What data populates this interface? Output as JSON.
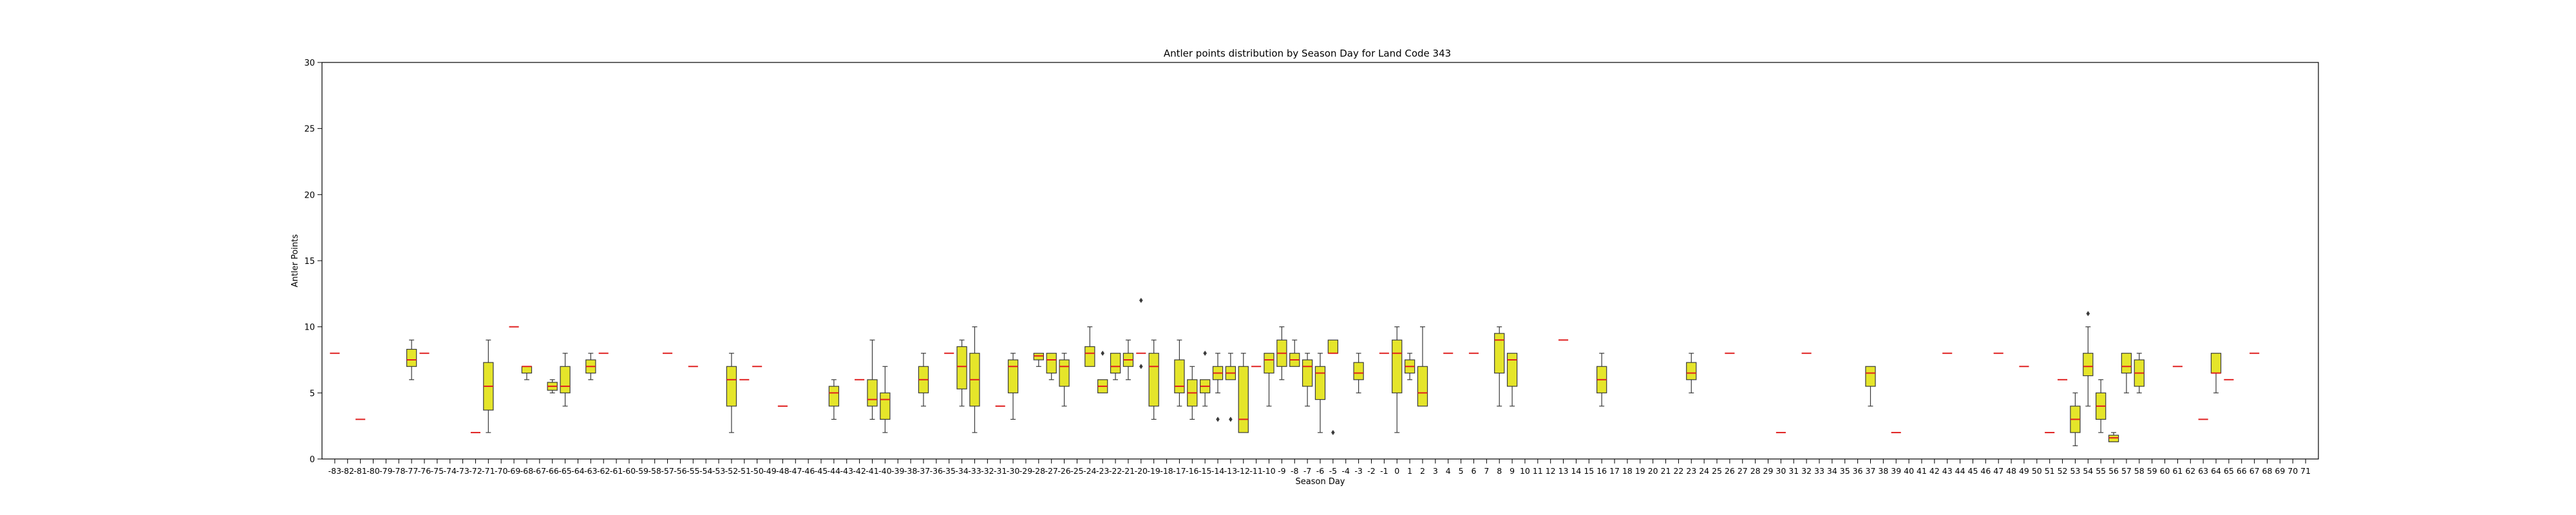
{
  "chart_data": {
    "type": "box",
    "title": "Antler points distribution by Season Day for Land Code 343",
    "xlabel": "Season Day",
    "ylabel": "Antler Points",
    "ylim": [
      0,
      30
    ],
    "yticks": [
      0,
      5,
      10,
      15,
      20,
      25,
      30
    ],
    "x_start": -83,
    "x_end": 71,
    "grid": false,
    "colors": {
      "box_fill": "#e5e52a",
      "median": "#e02020",
      "edge": "#3a3a3a",
      "flier": "#3a3a3a"
    },
    "boxes": [
      {
        "x": -83,
        "min": 8,
        "q1": 8,
        "median": 8,
        "q3": 8,
        "max": 8
      },
      {
        "x": -81,
        "min": 3,
        "q1": 3,
        "median": 3,
        "q3": 3,
        "max": 3
      },
      {
        "x": -77,
        "min": 6,
        "q1": 7,
        "median": 7.5,
        "q3": 8.3,
        "max": 9
      },
      {
        "x": -76,
        "min": 8,
        "q1": 8,
        "median": 8,
        "q3": 8,
        "max": 8
      },
      {
        "x": -72,
        "min": 2,
        "q1": 2,
        "median": 2,
        "q3": 2,
        "max": 2
      },
      {
        "x": -71,
        "min": 2,
        "q1": 3.7,
        "median": 5.5,
        "q3": 7.3,
        "max": 9
      },
      {
        "x": -69,
        "min": 10,
        "q1": 10,
        "median": 10,
        "q3": 10,
        "max": 10
      },
      {
        "x": -68,
        "min": 6,
        "q1": 6.5,
        "median": 7,
        "q3": 7,
        "max": 7
      },
      {
        "x": -66,
        "min": 5,
        "q1": 5.2,
        "median": 5.5,
        "q3": 5.8,
        "max": 6
      },
      {
        "x": -65,
        "min": 4,
        "q1": 5,
        "median": 5.5,
        "q3": 7,
        "max": 8
      },
      {
        "x": -63,
        "min": 6,
        "q1": 6.5,
        "median": 7,
        "q3": 7.5,
        "max": 8
      },
      {
        "x": -62,
        "min": 8,
        "q1": 8,
        "median": 8,
        "q3": 8,
        "max": 8
      },
      {
        "x": -57,
        "min": 8,
        "q1": 8,
        "median": 8,
        "q3": 8,
        "max": 8
      },
      {
        "x": -55,
        "min": 7,
        "q1": 7,
        "median": 7,
        "q3": 7,
        "max": 7
      },
      {
        "x": -52,
        "min": 2,
        "q1": 4,
        "median": 6,
        "q3": 7,
        "max": 8
      },
      {
        "x": -51,
        "min": 6,
        "q1": 6,
        "median": 6,
        "q3": 6,
        "max": 6
      },
      {
        "x": -50,
        "min": 7,
        "q1": 7,
        "median": 7,
        "q3": 7,
        "max": 7
      },
      {
        "x": -48,
        "min": 4,
        "q1": 4,
        "median": 4,
        "q3": 4,
        "max": 4
      },
      {
        "x": -44,
        "min": 3,
        "q1": 4,
        "median": 5,
        "q3": 5.5,
        "max": 6
      },
      {
        "x": -42,
        "min": 6,
        "q1": 6,
        "median": 6,
        "q3": 6,
        "max": 6
      },
      {
        "x": -41,
        "min": 3,
        "q1": 4,
        "median": 4.5,
        "q3": 6,
        "max": 9
      },
      {
        "x": -40,
        "min": 2,
        "q1": 3,
        "median": 4.5,
        "q3": 5,
        "max": 7
      },
      {
        "x": -37,
        "min": 4,
        "q1": 5,
        "median": 6,
        "q3": 7,
        "max": 8
      },
      {
        "x": -35,
        "min": 8,
        "q1": 8,
        "median": 8,
        "q3": 8,
        "max": 8
      },
      {
        "x": -34,
        "min": 4,
        "q1": 5.3,
        "median": 7,
        "q3": 8.5,
        "max": 9
      },
      {
        "x": -33,
        "min": 2,
        "q1": 4,
        "median": 6,
        "q3": 8,
        "max": 10
      },
      {
        "x": -31,
        "min": 4,
        "q1": 4,
        "median": 4,
        "q3": 4,
        "max": 4
      },
      {
        "x": -30,
        "min": 3,
        "q1": 5,
        "median": 7,
        "q3": 7.5,
        "max": 8
      },
      {
        "x": -28,
        "min": 7,
        "q1": 7.5,
        "median": 7.8,
        "q3": 8,
        "max": 8
      },
      {
        "x": -27,
        "min": 6,
        "q1": 6.5,
        "median": 7.5,
        "q3": 8,
        "max": 8
      },
      {
        "x": -26,
        "min": 4,
        "q1": 5.5,
        "median": 7,
        "q3": 7.5,
        "max": 8
      },
      {
        "x": -24,
        "min": 7,
        "q1": 7,
        "median": 8,
        "q3": 8.5,
        "max": 10
      },
      {
        "x": -23,
        "min": 5,
        "q1": 5,
        "median": 5.5,
        "q3": 6,
        "max": 6,
        "fliers": [
          8
        ]
      },
      {
        "x": -22,
        "min": 6,
        "q1": 6.5,
        "median": 7,
        "q3": 8,
        "max": 8
      },
      {
        "x": -21,
        "min": 6,
        "q1": 7,
        "median": 7.5,
        "q3": 8,
        "max": 9
      },
      {
        "x": -20,
        "min": 8,
        "q1": 8,
        "median": 8,
        "q3": 8,
        "max": 8,
        "fliers": [
          12,
          7
        ]
      },
      {
        "x": -19,
        "min": 3,
        "q1": 4,
        "median": 7,
        "q3": 8,
        "max": 9
      },
      {
        "x": -17,
        "min": 4,
        "q1": 5,
        "median": 5.5,
        "q3": 7.5,
        "max": 9
      },
      {
        "x": -16,
        "min": 3,
        "q1": 4,
        "median": 5,
        "q3": 6,
        "max": 7
      },
      {
        "x": -15,
        "min": 4,
        "q1": 5,
        "median": 5.5,
        "q3": 6,
        "max": 6,
        "fliers": [
          8
        ]
      },
      {
        "x": -14,
        "min": 5,
        "q1": 6,
        "median": 6.5,
        "q3": 7,
        "max": 8,
        "fliers": [
          3
        ]
      },
      {
        "x": -13,
        "min": 6,
        "q1": 6,
        "median": 6.5,
        "q3": 7,
        "max": 8,
        "fliers": [
          3
        ]
      },
      {
        "x": -12,
        "min": 2,
        "q1": 2,
        "median": 3,
        "q3": 7,
        "max": 8
      },
      {
        "x": -11,
        "min": 7,
        "q1": 7,
        "median": 7,
        "q3": 7,
        "max": 7
      },
      {
        "x": -10,
        "min": 4,
        "q1": 6.5,
        "median": 7.5,
        "q3": 8,
        "max": 8
      },
      {
        "x": -9,
        "min": 6,
        "q1": 7,
        "median": 8,
        "q3": 9,
        "max": 10
      },
      {
        "x": -8,
        "min": 7,
        "q1": 7,
        "median": 7.5,
        "q3": 8,
        "max": 9
      },
      {
        "x": -7,
        "min": 4,
        "q1": 5.5,
        "median": 7,
        "q3": 7.5,
        "max": 8
      },
      {
        "x": -6,
        "min": 2,
        "q1": 4.5,
        "median": 6.5,
        "q3": 7,
        "max": 8
      },
      {
        "x": -5,
        "min": 8,
        "q1": 8,
        "median": 8,
        "q3": 9,
        "max": 9,
        "fliers": [
          2
        ]
      },
      {
        "x": -3,
        "min": 5,
        "q1": 6,
        "median": 6.5,
        "q3": 7.3,
        "max": 8
      },
      {
        "x": -1,
        "min": 8,
        "q1": 8,
        "median": 8,
        "q3": 8,
        "max": 8
      },
      {
        "x": 0,
        "min": 2,
        "q1": 5,
        "median": 8,
        "q3": 9,
        "max": 10
      },
      {
        "x": 1,
        "min": 6,
        "q1": 6.5,
        "median": 7,
        "q3": 7.5,
        "max": 8
      },
      {
        "x": 2,
        "min": 4,
        "q1": 4,
        "median": 5,
        "q3": 7,
        "max": 10
      },
      {
        "x": 4,
        "min": 8,
        "q1": 8,
        "median": 8,
        "q3": 8,
        "max": 8
      },
      {
        "x": 6,
        "min": 8,
        "q1": 8,
        "median": 8,
        "q3": 8,
        "max": 8
      },
      {
        "x": 8,
        "min": 4,
        "q1": 6.5,
        "median": 9,
        "q3": 9.5,
        "max": 10
      },
      {
        "x": 9,
        "min": 4,
        "q1": 5.5,
        "median": 7.5,
        "q3": 8,
        "max": 8
      },
      {
        "x": 13,
        "min": 9,
        "q1": 9,
        "median": 9,
        "q3": 9,
        "max": 9
      },
      {
        "x": 16,
        "min": 4,
        "q1": 5,
        "median": 6,
        "q3": 7,
        "max": 8
      },
      {
        "x": 23,
        "min": 5,
        "q1": 6,
        "median": 6.5,
        "q3": 7.3,
        "max": 8
      },
      {
        "x": 26,
        "min": 8,
        "q1": 8,
        "median": 8,
        "q3": 8,
        "max": 8
      },
      {
        "x": 30,
        "min": 2,
        "q1": 2,
        "median": 2,
        "q3": 2,
        "max": 2
      },
      {
        "x": 32,
        "min": 8,
        "q1": 8,
        "median": 8,
        "q3": 8,
        "max": 8
      },
      {
        "x": 37,
        "min": 4,
        "q1": 5.5,
        "median": 6.5,
        "q3": 7,
        "max": 7
      },
      {
        "x": 39,
        "min": 2,
        "q1": 2,
        "median": 2,
        "q3": 2,
        "max": 2
      },
      {
        "x": 43,
        "min": 8,
        "q1": 8,
        "median": 8,
        "q3": 8,
        "max": 8
      },
      {
        "x": 47,
        "min": 8,
        "q1": 8,
        "median": 8,
        "q3": 8,
        "max": 8
      },
      {
        "x": 49,
        "min": 7,
        "q1": 7,
        "median": 7,
        "q3": 7,
        "max": 7
      },
      {
        "x": 51,
        "min": 2,
        "q1": 2,
        "median": 2,
        "q3": 2,
        "max": 2
      },
      {
        "x": 52,
        "min": 6,
        "q1": 6,
        "median": 6,
        "q3": 6,
        "max": 6
      },
      {
        "x": 53,
        "min": 1,
        "q1": 2,
        "median": 3,
        "q3": 4,
        "max": 5
      },
      {
        "x": 54,
        "min": 4,
        "q1": 6.3,
        "median": 7,
        "q3": 8,
        "max": 10,
        "fliers": [
          11
        ]
      },
      {
        "x": 55,
        "min": 2,
        "q1": 3,
        "median": 4,
        "q3": 5,
        "max": 6
      },
      {
        "x": 56,
        "min": 1.3,
        "q1": 1.3,
        "median": 1.6,
        "q3": 1.8,
        "max": 2
      },
      {
        "x": 57,
        "min": 5,
        "q1": 6.5,
        "median": 7,
        "q3": 8,
        "max": 8
      },
      {
        "x": 58,
        "min": 5,
        "q1": 5.5,
        "median": 6.5,
        "q3": 7.5,
        "max": 8
      },
      {
        "x": 61,
        "min": 7,
        "q1": 7,
        "median": 7,
        "q3": 7,
        "max": 7
      },
      {
        "x": 63,
        "min": 3,
        "q1": 3,
        "median": 3,
        "q3": 3,
        "max": 3
      },
      {
        "x": 64,
        "min": 5,
        "q1": 6.5,
        "median": 6.5,
        "q3": 8,
        "max": 8
      },
      {
        "x": 65,
        "min": 6,
        "q1": 6,
        "median": 6,
        "q3": 6,
        "max": 6
      },
      {
        "x": 67,
        "min": 8,
        "q1": 8,
        "median": 8,
        "q3": 8,
        "max": 8
      }
    ]
  }
}
